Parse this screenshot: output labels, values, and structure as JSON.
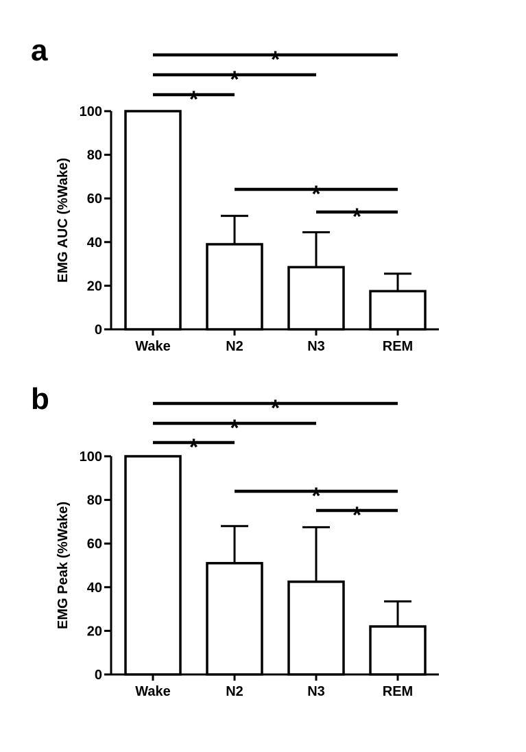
{
  "chart_data": [
    {
      "panel": "a",
      "type": "bar",
      "title": "",
      "xlabel": "",
      "ylabel": "EMG AUC (%Wake)",
      "categories": [
        "Wake",
        "N2",
        "N3",
        "REM"
      ],
      "values": [
        100,
        39,
        28.5,
        17.5
      ],
      "error_upper": [
        0,
        13,
        16,
        8
      ],
      "ylim": [
        0,
        100
      ],
      "yticks": [
        0,
        20,
        40,
        60,
        80,
        100
      ],
      "significance": [
        {
          "from": "Wake",
          "to": "REM",
          "label": "*"
        },
        {
          "from": "Wake",
          "to": "N3",
          "label": "*"
        },
        {
          "from": "Wake",
          "to": "N2",
          "label": "*"
        },
        {
          "from": "N2",
          "to": "REM",
          "label": "*"
        },
        {
          "from": "N3",
          "to": "REM",
          "label": "*"
        }
      ]
    },
    {
      "panel": "b",
      "type": "bar",
      "title": "",
      "xlabel": "",
      "ylabel": "EMG Peak (%Wake)",
      "categories": [
        "Wake",
        "N2",
        "N3",
        "REM"
      ],
      "values": [
        100,
        51,
        42.5,
        22
      ],
      "error_upper": [
        0,
        17,
        25,
        11.5
      ],
      "ylim": [
        0,
        100
      ],
      "yticks": [
        0,
        20,
        40,
        60,
        80,
        100
      ],
      "significance": [
        {
          "from": "Wake",
          "to": "REM",
          "label": "*"
        },
        {
          "from": "Wake",
          "to": "N3",
          "label": "*"
        },
        {
          "from": "Wake",
          "to": "N2",
          "label": "*"
        },
        {
          "from": "N2",
          "to": "REM",
          "label": "*"
        },
        {
          "from": "N3",
          "to": "REM",
          "label": "*"
        }
      ]
    }
  ]
}
